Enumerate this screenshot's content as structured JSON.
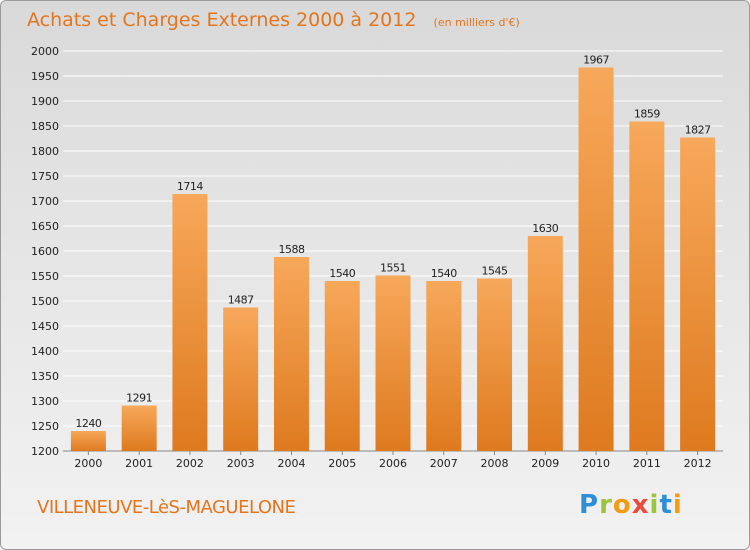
{
  "title": "Achats et Charges Externes 2000 à 2012",
  "subtitle": "(en milliers d'€)",
  "city": "VILLENEUVE-LèS-MAGUELONE",
  "logo": {
    "text": "Proxiti",
    "letters": [
      {
        "ch": "P",
        "color": "#2e8fd6"
      },
      {
        "ch": "r",
        "color": "#9bc53d"
      },
      {
        "ch": "o",
        "color": "#f39c12"
      },
      {
        "ch": "x",
        "color": "#e74c3c"
      },
      {
        "ch": "i",
        "color": "#9bc53d"
      },
      {
        "ch": "t",
        "color": "#2e8fd6"
      },
      {
        "ch": "i",
        "color": "#f39c12"
      }
    ]
  },
  "colors": {
    "accent": "#e2761e",
    "bar_top": "#f7a85a",
    "bar_bottom": "#de7a1f",
    "grid": "#ffffff",
    "axis_text": "#222222"
  },
  "chart_data": {
    "type": "bar",
    "categories": [
      "2000",
      "2001",
      "2002",
      "2003",
      "2004",
      "2005",
      "2006",
      "2007",
      "2008",
      "2009",
      "2010",
      "2011",
      "2012"
    ],
    "values": [
      1240,
      1291,
      1714,
      1487,
      1588,
      1540,
      1551,
      1540,
      1545,
      1630,
      1967,
      1859,
      1827
    ],
    "ylim": [
      1200,
      2000
    ],
    "yticks": [
      1200,
      1250,
      1300,
      1350,
      1400,
      1450,
      1500,
      1550,
      1600,
      1650,
      1700,
      1750,
      1800,
      1850,
      1900,
      1950,
      2000
    ],
    "grid": true,
    "data_labels": true
  }
}
